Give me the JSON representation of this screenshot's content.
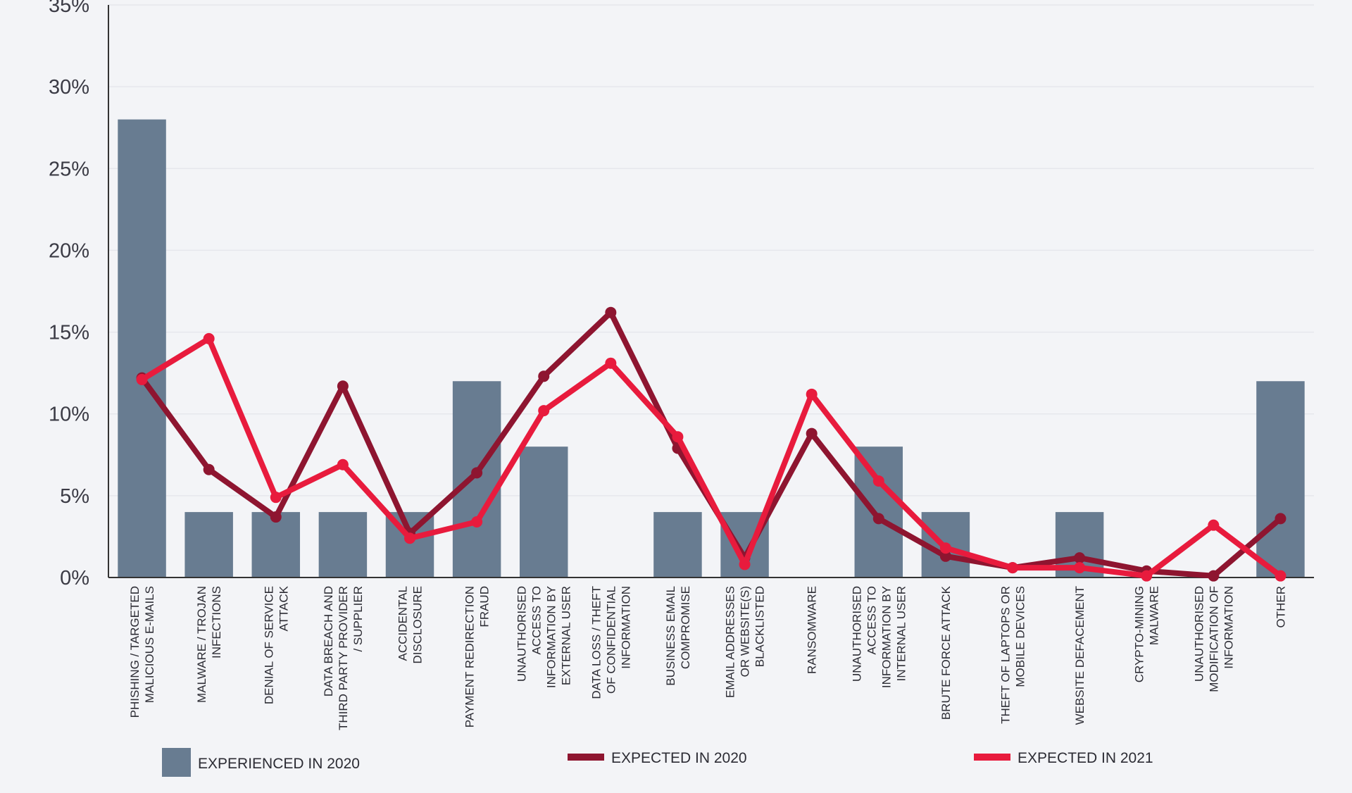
{
  "chart_data": {
    "type": "bar",
    "categories": [
      [
        "PHISHING / TARGETED",
        "MALICIOUS E-MAILS"
      ],
      [
        "MALWARE / TROJAN",
        "INFECTIONS"
      ],
      [
        "DENIAL OF SERVICE",
        "ATTACK"
      ],
      [
        "DATA BREACH AND",
        "THIRD PARTY PROVIDER",
        "/ SUPPLIER"
      ],
      [
        "ACCIDENTAL",
        "DISCLOSURE"
      ],
      [
        "PAYMENT REDIRECTION",
        "FRAUD"
      ],
      [
        "UNAUTHORISED",
        "ACCESS TO",
        "INFORMATION BY",
        "EXTERNAL USER"
      ],
      [
        "DATA LOSS / THEFT",
        "OF CONFIDENTIAL",
        "INFORMATION"
      ],
      [
        "BUSINESS EMAIL",
        "COMPROMISE"
      ],
      [
        "EMAIL ADDRESSES",
        "OR WEBSITE(S)",
        "BLACKLISTED"
      ],
      [
        "RANSOMWARE"
      ],
      [
        "UNAUTHORISED",
        "ACCESS TO",
        "INFORMATION BY",
        "INTERNAL USER"
      ],
      [
        "BRUTE FORCE ATTACK"
      ],
      [
        "THEFT OF LAPTOPS OR",
        "MOBILE DEVICES"
      ],
      [
        "WEBSITE DEFACEMENT"
      ],
      [
        "CRYPTO-MINING",
        "MALWARE"
      ],
      [
        "UNAUTHORISED",
        "MODIFICATION OF",
        "INFORMATION"
      ],
      [
        "OTHER"
      ]
    ],
    "series": [
      {
        "name": "EXPERIENCED IN 2020",
        "kind": "bar",
        "color": "#687c91",
        "values": [
          28,
          4,
          4,
          4,
          4,
          12,
          8,
          0,
          4,
          4,
          0,
          8,
          4,
          0,
          4,
          0,
          0,
          12
        ]
      },
      {
        "name": "EXPECTED IN 2020",
        "kind": "line",
        "color": "#8e1530",
        "values": [
          12.2,
          6.6,
          3.7,
          11.7,
          2.7,
          6.4,
          12.3,
          16.2,
          7.9,
          1.2,
          8.8,
          3.6,
          1.3,
          0.6,
          1.2,
          0.4,
          0.1,
          3.6
        ]
      },
      {
        "name": "EXPECTED IN 2021",
        "kind": "line",
        "color": "#e81b3d",
        "values": [
          12.1,
          14.6,
          4.9,
          6.9,
          2.4,
          3.4,
          10.2,
          13.1,
          8.6,
          0.8,
          11.2,
          5.9,
          1.8,
          0.6,
          0.6,
          0.1,
          3.2,
          0.1
        ]
      }
    ],
    "yticks": [
      "0%",
      "5%",
      "10%",
      "15%",
      "20%",
      "25%",
      "30%",
      "35%"
    ],
    "ylim": [
      0,
      35
    ],
    "grid": true,
    "legend_position": "bottom",
    "title": "",
    "xlabel": "",
    "ylabel": ""
  }
}
